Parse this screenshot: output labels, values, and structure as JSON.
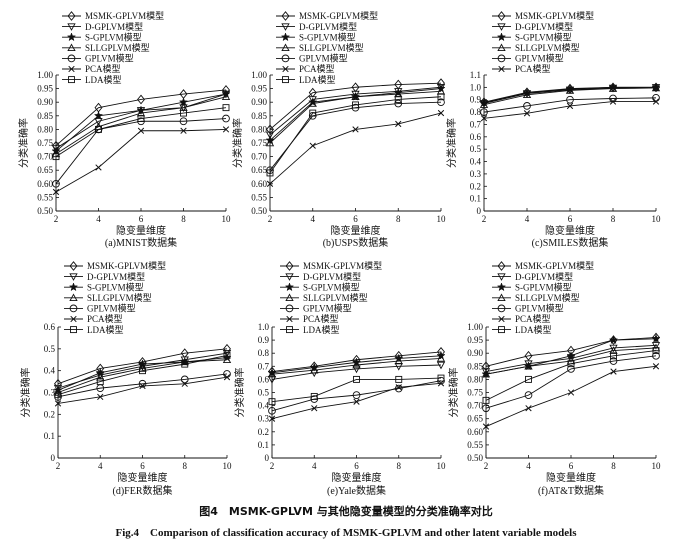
{
  "figure": {
    "title_cn": "图4　MSMK-GPLVM 与其他隐变量模型的分类准确率对比",
    "title_en": "Fig.4　Comparison of classification accuracy of MSMK-GPLVM and other latent variable models"
  },
  "colors": {
    "line": "#111111",
    "axis": "#111111",
    "background": "#ffffff"
  },
  "chart_data": [
    {
      "type": "line",
      "caption": "(a)MNIST数据集",
      "xlabel": "隐变量维度",
      "ylabel": "分类准确率",
      "x": [
        2,
        4,
        6,
        8,
        10
      ],
      "xlim": [
        2,
        10
      ],
      "ylim": [
        0.5,
        1.0
      ],
      "yticks": [
        "0.50",
        "0.55",
        "0.60",
        "0.65",
        "0.70",
        "0.75",
        "0.80",
        "0.85",
        "0.90",
        "0.95",
        "1.00"
      ],
      "legend_placement": "top-left",
      "grid": false,
      "series": [
        {
          "name": "MSMK-GPLVM模型",
          "marker": "diamond",
          "values": [
            0.74,
            0.88,
            0.91,
            0.93,
            0.945
          ]
        },
        {
          "name": "D-GPLVM模型",
          "marker": "triangle-down",
          "values": [
            0.73,
            0.83,
            0.87,
            0.88,
            0.93
          ]
        },
        {
          "name": "S-GPLVM模型",
          "marker": "star",
          "values": [
            0.72,
            0.85,
            0.87,
            0.9,
            0.93
          ]
        },
        {
          "name": "SLLGPLVM模型",
          "marker": "triangle-up",
          "values": [
            0.71,
            0.81,
            0.86,
            0.88,
            0.92
          ]
        },
        {
          "name": "GPLVM模型",
          "marker": "circle",
          "values": [
            0.6,
            0.8,
            0.83,
            0.83,
            0.84
          ]
        },
        {
          "name": "PCA模型",
          "marker": "x",
          "values": [
            0.57,
            0.66,
            0.795,
            0.795,
            0.8
          ]
        },
        {
          "name": "LDA模型",
          "marker": "square",
          "values": [
            0.7,
            0.8,
            0.84,
            0.86,
            0.88
          ]
        }
      ]
    },
    {
      "type": "line",
      "caption": "(b)USPS数据集",
      "xlabel": "隐变量维度",
      "ylabel": "分类准确率",
      "x": [
        2,
        4,
        6,
        8,
        10
      ],
      "xlim": [
        2,
        10
      ],
      "ylim": [
        0.5,
        1.0
      ],
      "yticks": [
        "0.50",
        "0.55",
        "0.60",
        "0.65",
        "0.70",
        "0.75",
        "0.80",
        "0.85",
        "0.90",
        "0.95",
        "1.00"
      ],
      "legend_placement": "top-left",
      "grid": false,
      "series": [
        {
          "name": "MSMK-GPLVM模型",
          "marker": "diamond",
          "values": [
            0.8,
            0.935,
            0.955,
            0.965,
            0.97
          ]
        },
        {
          "name": "D-GPLVM模型",
          "marker": "triangle-down",
          "values": [
            0.78,
            0.91,
            0.93,
            0.94,
            0.955
          ]
        },
        {
          "name": "S-GPLVM模型",
          "marker": "star",
          "values": [
            0.76,
            0.9,
            0.92,
            0.935,
            0.95
          ]
        },
        {
          "name": "SLLGPLVM模型",
          "marker": "triangle-up",
          "values": [
            0.75,
            0.895,
            0.92,
            0.93,
            0.94
          ]
        },
        {
          "name": "GPLVM模型",
          "marker": "circle",
          "values": [
            0.65,
            0.85,
            0.88,
            0.895,
            0.9
          ]
        },
        {
          "name": "PCA模型",
          "marker": "x",
          "values": [
            0.6,
            0.74,
            0.8,
            0.82,
            0.86
          ]
        },
        {
          "name": "LDA模型",
          "marker": "square",
          "values": [
            0.64,
            0.86,
            0.89,
            0.91,
            0.92
          ]
        }
      ]
    },
    {
      "type": "line",
      "caption": "(c)SMILES数据集",
      "xlabel": "隐变量维度",
      "ylabel": "分类准确率",
      "x": [
        2,
        4,
        6,
        8,
        10
      ],
      "xlim": [
        2,
        10
      ],
      "ylim": [
        0.0,
        1.1
      ],
      "yticks": [
        "0",
        "0.1",
        "0.2",
        "0.3",
        "0.4",
        "0.5",
        "0.6",
        "0.7",
        "0.8",
        "0.9",
        "1.0",
        "1.1"
      ],
      "legend_placement": "top-left",
      "grid": false,
      "series": [
        {
          "name": "MSMK-GPLVM模型",
          "marker": "diamond",
          "values": [
            0.88,
            0.96,
            0.99,
            1.0,
            1.0
          ]
        },
        {
          "name": "D-GPLVM模型",
          "marker": "triangle-down",
          "values": [
            0.87,
            0.95,
            0.98,
            0.995,
            1.0
          ]
        },
        {
          "name": "S-GPLVM模型",
          "marker": "star",
          "values": [
            0.875,
            0.955,
            0.985,
            1.0,
            1.0
          ]
        },
        {
          "name": "SLLGPLVM模型",
          "marker": "triangle-up",
          "values": [
            0.86,
            0.94,
            0.975,
            0.99,
            0.995
          ]
        },
        {
          "name": "GPLVM模型",
          "marker": "circle",
          "values": [
            0.8,
            0.85,
            0.9,
            0.91,
            0.915
          ]
        },
        {
          "name": "PCA模型",
          "marker": "x",
          "values": [
            0.75,
            0.79,
            0.85,
            0.885,
            0.885
          ]
        }
      ]
    },
    {
      "type": "line",
      "caption": "(d)FER数据集",
      "xlabel": "隐变量维度",
      "ylabel": "分类准确率",
      "x": [
        2,
        4,
        6,
        8,
        10
      ],
      "xlim": [
        2,
        10
      ],
      "ylim": [
        0.0,
        0.6
      ],
      "yticks": [
        "0",
        "0.1",
        "0.2",
        "0.3",
        "0.4",
        "0.5",
        "0.6"
      ],
      "legend_placement": "top-left",
      "grid": false,
      "series": [
        {
          "name": "MSMK-GPLVM模型",
          "marker": "diamond",
          "values": [
            0.34,
            0.41,
            0.44,
            0.48,
            0.5
          ]
        },
        {
          "name": "D-GPLVM模型",
          "marker": "triangle-down",
          "values": [
            0.32,
            0.38,
            0.42,
            0.45,
            0.48
          ]
        },
        {
          "name": "S-GPLVM模型",
          "marker": "star",
          "values": [
            0.31,
            0.39,
            0.43,
            0.44,
            0.46
          ]
        },
        {
          "name": "SLLGPLVM模型",
          "marker": "triangle-up",
          "values": [
            0.3,
            0.37,
            0.41,
            0.44,
            0.45
          ]
        },
        {
          "name": "GPLVM模型",
          "marker": "circle",
          "values": [
            0.28,
            0.32,
            0.34,
            0.36,
            0.385
          ]
        },
        {
          "name": "PCA模型",
          "marker": "x",
          "values": [
            0.25,
            0.28,
            0.33,
            0.34,
            0.37
          ]
        },
        {
          "name": "LDA模型",
          "marker": "square",
          "values": [
            0.29,
            0.35,
            0.4,
            0.43,
            0.47
          ]
        }
      ]
    },
    {
      "type": "line",
      "caption": "(e)Yale数据集",
      "xlabel": "隐变量维度",
      "ylabel": "分类准确率",
      "x": [
        2,
        4,
        6,
        8,
        10
      ],
      "xlim": [
        2,
        10
      ],
      "ylim": [
        0.0,
        1.0
      ],
      "yticks": [
        "0",
        "0.1",
        "0.2",
        "0.3",
        "0.4",
        "0.5",
        "0.6",
        "0.7",
        "0.8",
        "0.9",
        "1.0"
      ],
      "legend_placement": "top-left",
      "grid": false,
      "series": [
        {
          "name": "MSMK-GPLVM模型",
          "marker": "diamond",
          "values": [
            0.66,
            0.7,
            0.75,
            0.78,
            0.81
          ]
        },
        {
          "name": "D-GPLVM模型",
          "marker": "triangle-down",
          "values": [
            0.6,
            0.65,
            0.68,
            0.7,
            0.71
          ]
        },
        {
          "name": "S-GPLVM模型",
          "marker": "star",
          "values": [
            0.65,
            0.69,
            0.73,
            0.76,
            0.78
          ]
        },
        {
          "name": "SLLGPLVM模型",
          "marker": "triangle-up",
          "values": [
            0.64,
            0.67,
            0.71,
            0.74,
            0.76
          ]
        },
        {
          "name": "GPLVM模型",
          "marker": "circle",
          "values": [
            0.36,
            0.45,
            0.48,
            0.53,
            0.59
          ]
        },
        {
          "name": "PCA模型",
          "marker": "x",
          "values": [
            0.3,
            0.38,
            0.43,
            0.54,
            0.57
          ]
        },
        {
          "name": "LDA模型",
          "marker": "square",
          "values": [
            0.43,
            0.47,
            0.6,
            0.6,
            0.61
          ]
        }
      ]
    },
    {
      "type": "line",
      "caption": "(f)AT&T数据集",
      "xlabel": "隐变量维度",
      "ylabel": "分类准确率",
      "x": [
        2,
        4,
        6,
        8,
        10
      ],
      "xlim": [
        2,
        10
      ],
      "ylim": [
        0.5,
        1.0
      ],
      "yticks": [
        "0.50",
        "0.55",
        "0.60",
        "0.65",
        "0.70",
        "0.75",
        "0.80",
        "0.85",
        "0.90",
        "0.95",
        "1.00"
      ],
      "legend_placement": "top-left",
      "grid": false,
      "series": [
        {
          "name": "MSMK-GPLVM模型",
          "marker": "diamond",
          "values": [
            0.85,
            0.89,
            0.91,
            0.95,
            0.96
          ]
        },
        {
          "name": "D-GPLVM模型",
          "marker": "triangle-down",
          "values": [
            0.83,
            0.86,
            0.88,
            0.92,
            0.93
          ]
        },
        {
          "name": "S-GPLVM模型",
          "marker": "star",
          "values": [
            0.82,
            0.85,
            0.89,
            0.95,
            0.955
          ]
        },
        {
          "name": "SLLGPLVM模型",
          "marker": "triangle-up",
          "values": [
            0.82,
            0.85,
            0.87,
            0.91,
            0.92
          ]
        },
        {
          "name": "GPLVM模型",
          "marker": "circle",
          "values": [
            0.69,
            0.74,
            0.84,
            0.87,
            0.89
          ]
        },
        {
          "name": "PCA模型",
          "marker": "x",
          "values": [
            0.62,
            0.69,
            0.75,
            0.83,
            0.85
          ]
        },
        {
          "name": "LDA模型",
          "marker": "square",
          "values": [
            0.72,
            0.8,
            0.86,
            0.89,
            0.91
          ]
        }
      ]
    }
  ]
}
